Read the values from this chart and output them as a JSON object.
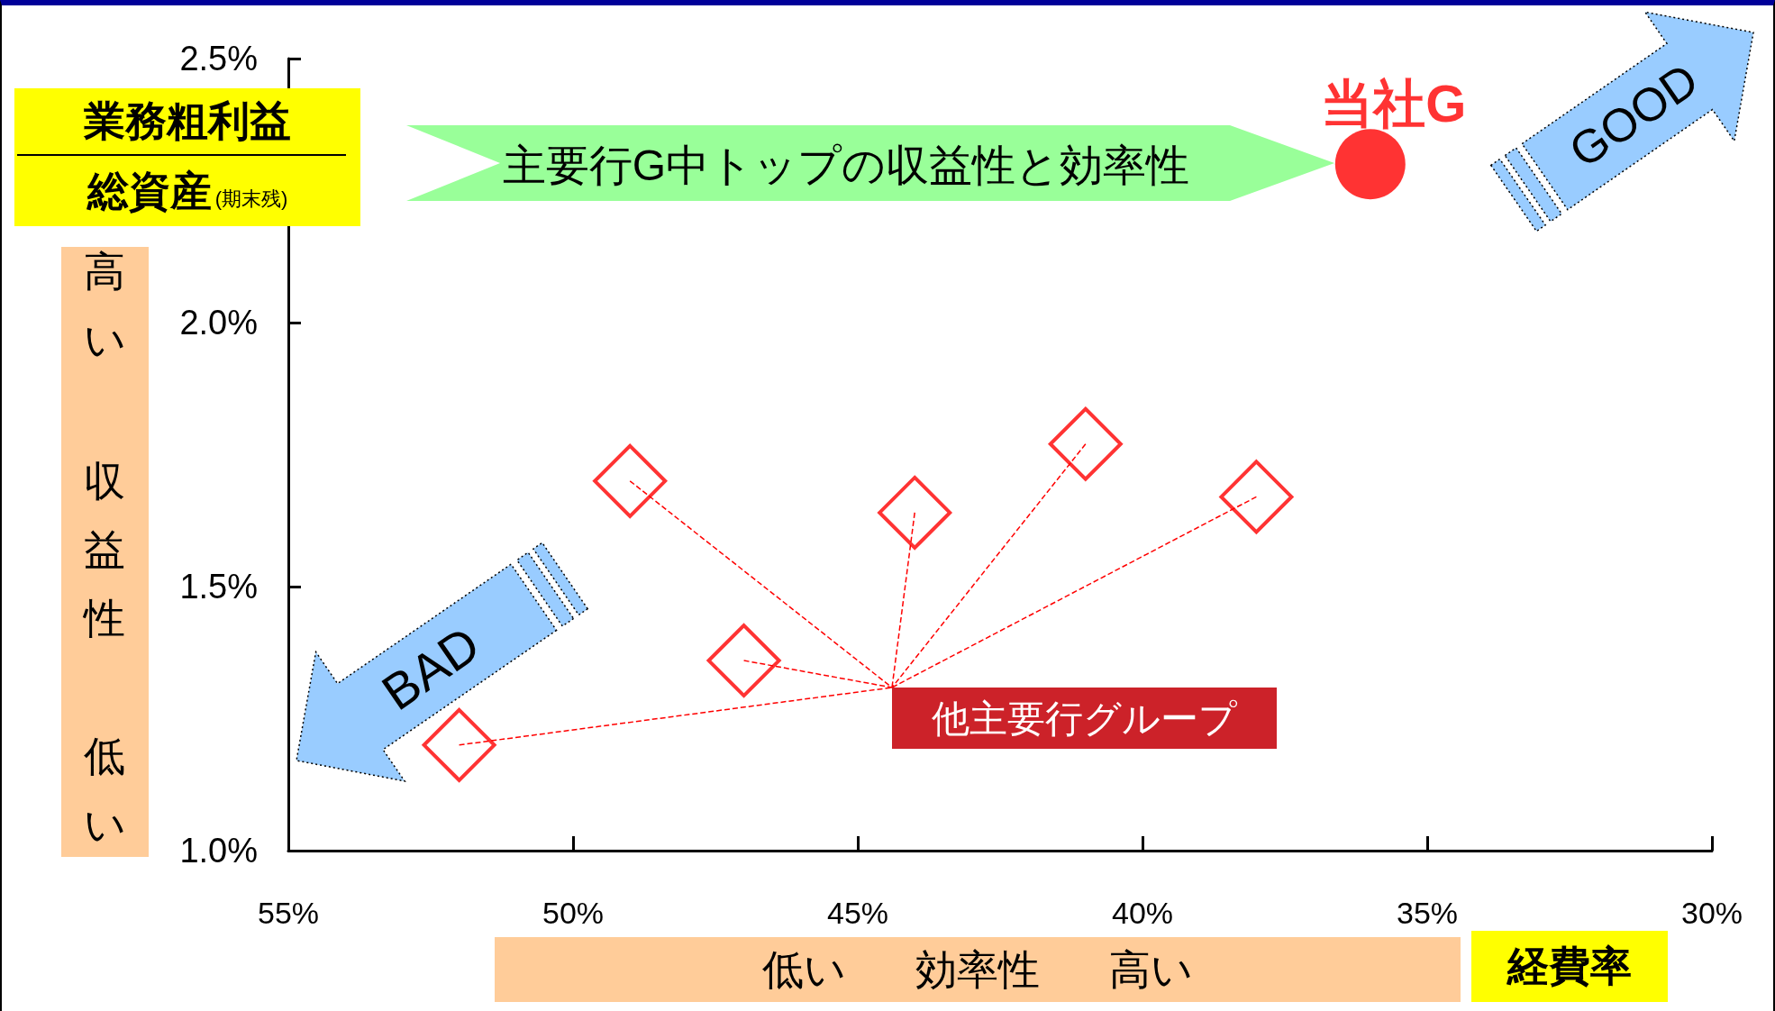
{
  "chart_data": {
    "type": "scatter",
    "xlabel": "経費率",
    "ylabel": "業務粗利益",
    "xlim": [
      55,
      30
    ],
    "xticks": [
      {
        "value": 55,
        "label": "55%"
      },
      {
        "value": 50,
        "label": "50%"
      },
      {
        "value": 45,
        "label": "45%"
      },
      {
        "value": 40,
        "label": "40%"
      },
      {
        "value": 35,
        "label": "35%"
      },
      {
        "value": 30,
        "label": "30%"
      }
    ],
    "ylim": [
      1.0,
      2.5
    ],
    "yticks": [
      {
        "value": 1.0,
        "label": "1.0%"
      },
      {
        "value": 1.5,
        "label": "1.5%"
      },
      {
        "value": 2.0,
        "label": "2.0%"
      },
      {
        "value": 2.5,
        "label": "2.5%"
      }
    ],
    "grid": false,
    "legend": false,
    "series": [
      {
        "name": "当社G",
        "color": "#ff0000",
        "marker": "circle",
        "x": [
          36.0
        ],
        "values": [
          2.3
        ]
      },
      {
        "name": "他主要行グループ",
        "color": "#ff0000",
        "marker": "diamond",
        "x": [
          52.0,
          49.0,
          47.0,
          44.0,
          41.0,
          38.0
        ],
        "values": [
          1.2,
          1.7,
          1.36,
          1.64,
          1.77,
          1.67
        ]
      }
    ],
    "annotations": [
      "主要行G中トップの収益性と効率性",
      "GOOD",
      "BAD",
      "低い 効率性 高い",
      "高い",
      "収益性",
      "低い",
      "総資産(期末残)"
    ]
  }
}
